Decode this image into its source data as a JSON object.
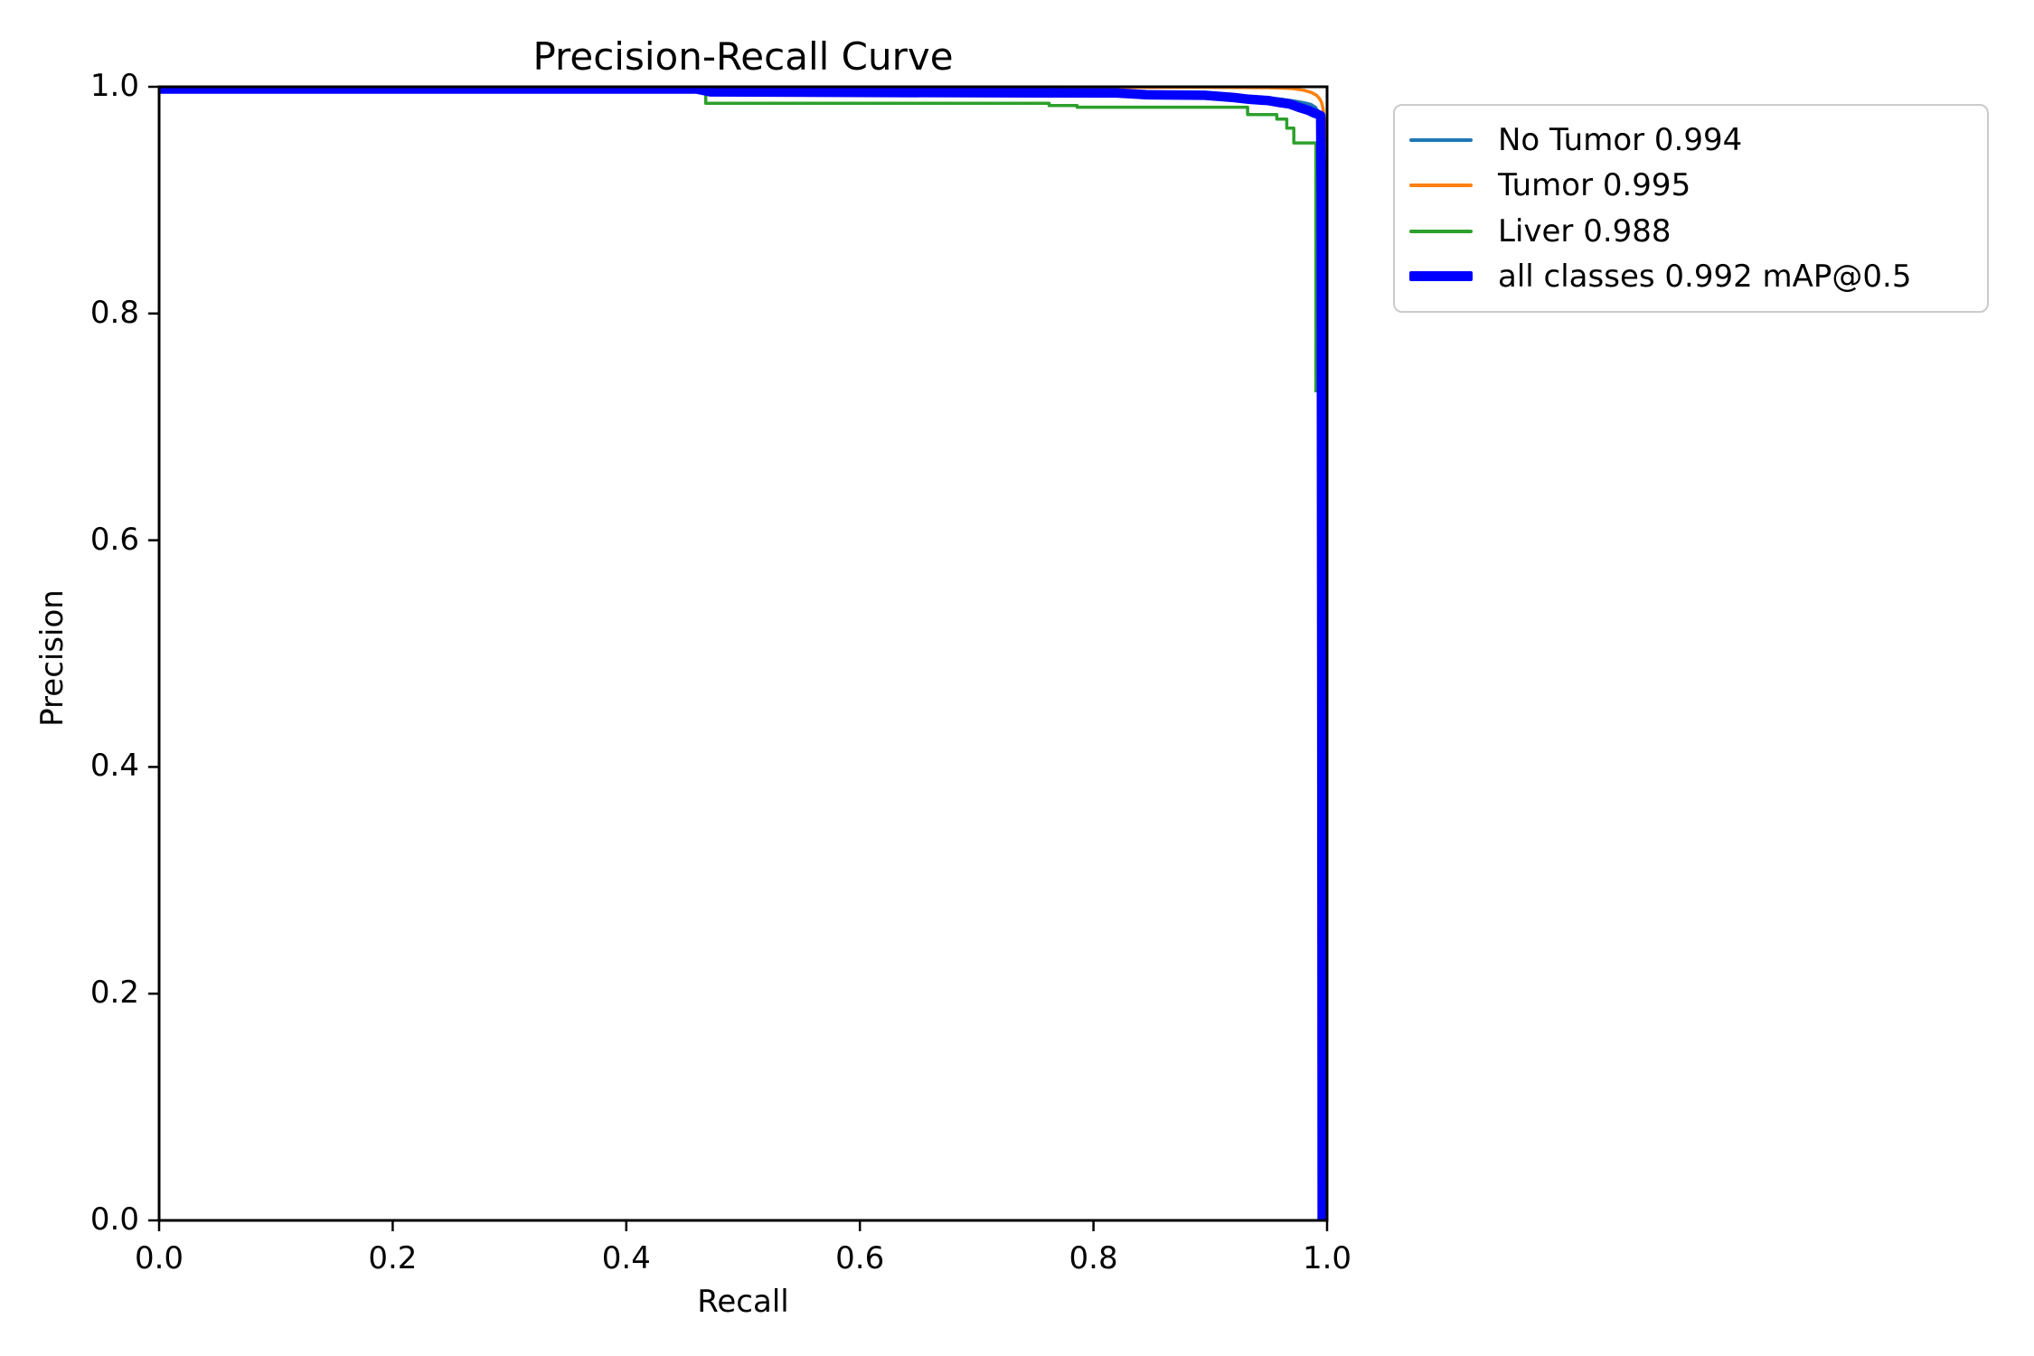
{
  "chart_data": {
    "type": "line",
    "title": "Precision-Recall Curve",
    "xlabel": "Recall",
    "ylabel": "Precision",
    "xlim": [
      0.0,
      1.0
    ],
    "ylim": [
      0.0,
      1.0
    ],
    "xticks": [
      "0.0",
      "0.2",
      "0.4",
      "0.6",
      "0.8",
      "1.0"
    ],
    "yticks": [
      "0.0",
      "0.2",
      "0.4",
      "0.6",
      "0.8",
      "1.0"
    ],
    "grid": false,
    "legend_position": "outside-upper-right",
    "map_at_05": 0.992,
    "series": [
      {
        "name": "No Tumor",
        "ap": 0.994,
        "label": "No Tumor 0.994",
        "color": "#1f77b4",
        "linewidth": 3.5,
        "points": [
          [
            0.0,
            0.9985
          ],
          [
            0.45,
            0.9985
          ],
          [
            0.47,
            0.998
          ],
          [
            0.7,
            0.998
          ],
          [
            0.76,
            0.9965
          ],
          [
            0.84,
            0.9955
          ],
          [
            0.87,
            0.994
          ],
          [
            0.9,
            0.9925
          ],
          [
            0.925,
            0.9915
          ],
          [
            0.945,
            0.9905
          ],
          [
            0.962,
            0.989
          ],
          [
            0.972,
            0.9875
          ],
          [
            0.98,
            0.986
          ],
          [
            0.986,
            0.9845
          ],
          [
            0.99,
            0.982
          ],
          [
            0.9925,
            0.978
          ],
          [
            0.994,
            0.9745
          ]
        ]
      },
      {
        "name": "Tumor",
        "ap": 0.995,
        "label": "Tumor 0.995",
        "color": "#ff7f0e",
        "linewidth": 3.5,
        "points": [
          [
            0.0,
            0.9995
          ],
          [
            0.9,
            0.9995
          ],
          [
            0.95,
            0.9992
          ],
          [
            0.97,
            0.9985
          ],
          [
            0.98,
            0.997
          ],
          [
            0.9865,
            0.995
          ],
          [
            0.991,
            0.9925
          ],
          [
            0.994,
            0.989
          ],
          [
            0.9955,
            0.9855
          ],
          [
            0.9967,
            0.98
          ],
          [
            0.9974,
            0.9725
          ],
          [
            0.9979,
            0.962
          ],
          [
            0.9982,
            0.951
          ]
        ]
      },
      {
        "name": "Liver",
        "ap": 0.988,
        "label": "Liver 0.988",
        "color": "#2ca02c",
        "linewidth": 3.5,
        "points": [
          [
            0.0,
            0.9995
          ],
          [
            0.468,
            0.9995
          ],
          [
            0.468,
            0.9855
          ],
          [
            0.762,
            0.9855
          ],
          [
            0.762,
            0.9835
          ],
          [
            0.786,
            0.9835
          ],
          [
            0.786,
            0.982
          ],
          [
            0.932,
            0.982
          ],
          [
            0.932,
            0.9755
          ],
          [
            0.957,
            0.9755
          ],
          [
            0.957,
            0.9715
          ],
          [
            0.9655,
            0.9715
          ],
          [
            0.9655,
            0.9635
          ],
          [
            0.9715,
            0.9635
          ],
          [
            0.9715,
            0.9505
          ],
          [
            0.9905,
            0.9505
          ],
          [
            0.9905,
            0.7305
          ]
        ]
      },
      {
        "name": "all classes",
        "ap": 0.992,
        "label": "all classes 0.992 mAP@0.5",
        "color": "#0000ff",
        "linewidth": 10.5,
        "points": [
          [
            0.0,
            0.998
          ],
          [
            0.46,
            0.998
          ],
          [
            0.472,
            0.9955
          ],
          [
            0.6,
            0.995
          ],
          [
            0.82,
            0.9945
          ],
          [
            0.845,
            0.993
          ],
          [
            0.895,
            0.9925
          ],
          [
            0.92,
            0.9905
          ],
          [
            0.933,
            0.989
          ],
          [
            0.95,
            0.9878
          ],
          [
            0.96,
            0.986
          ],
          [
            0.968,
            0.9848
          ],
          [
            0.976,
            0.9818
          ],
          [
            0.984,
            0.9793
          ],
          [
            0.989,
            0.9768
          ],
          [
            0.9925,
            0.9755
          ],
          [
            0.9945,
            0.9745
          ],
          [
            0.995,
            0.9
          ],
          [
            0.9955,
            0.4
          ],
          [
            0.9958,
            0.0
          ]
        ]
      }
    ]
  }
}
